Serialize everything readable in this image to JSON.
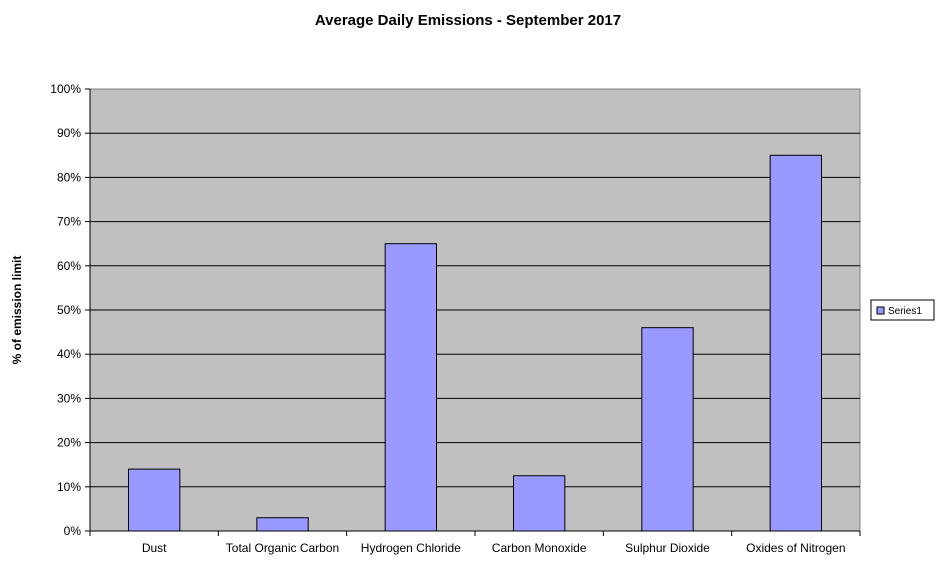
{
  "chart_data": {
    "type": "bar",
    "title": "Average Daily Emissions -  September 2017",
    "xlabel": "",
    "ylabel": "% of emission limit",
    "categories": [
      "Dust",
      "Total Organic Carbon",
      "Hydrogen Chloride",
      "Carbon Monoxide",
      "Sulphur Dioxide",
      "Oxides of Nitrogen"
    ],
    "series": [
      {
        "name": "Series1",
        "values": [
          14,
          3,
          65,
          12.5,
          46,
          85
        ]
      }
    ],
    "ylim": [
      0,
      100
    ],
    "yticks": [
      "0%",
      "10%",
      "20%",
      "30%",
      "40%",
      "50%",
      "60%",
      "70%",
      "80%",
      "90%",
      "100%"
    ],
    "grid": true,
    "legend": "right",
    "colors": {
      "bar": "#9999ff",
      "plot_area": "#c0c0c0",
      "gridline": "#000000",
      "axis": "#808080"
    }
  }
}
